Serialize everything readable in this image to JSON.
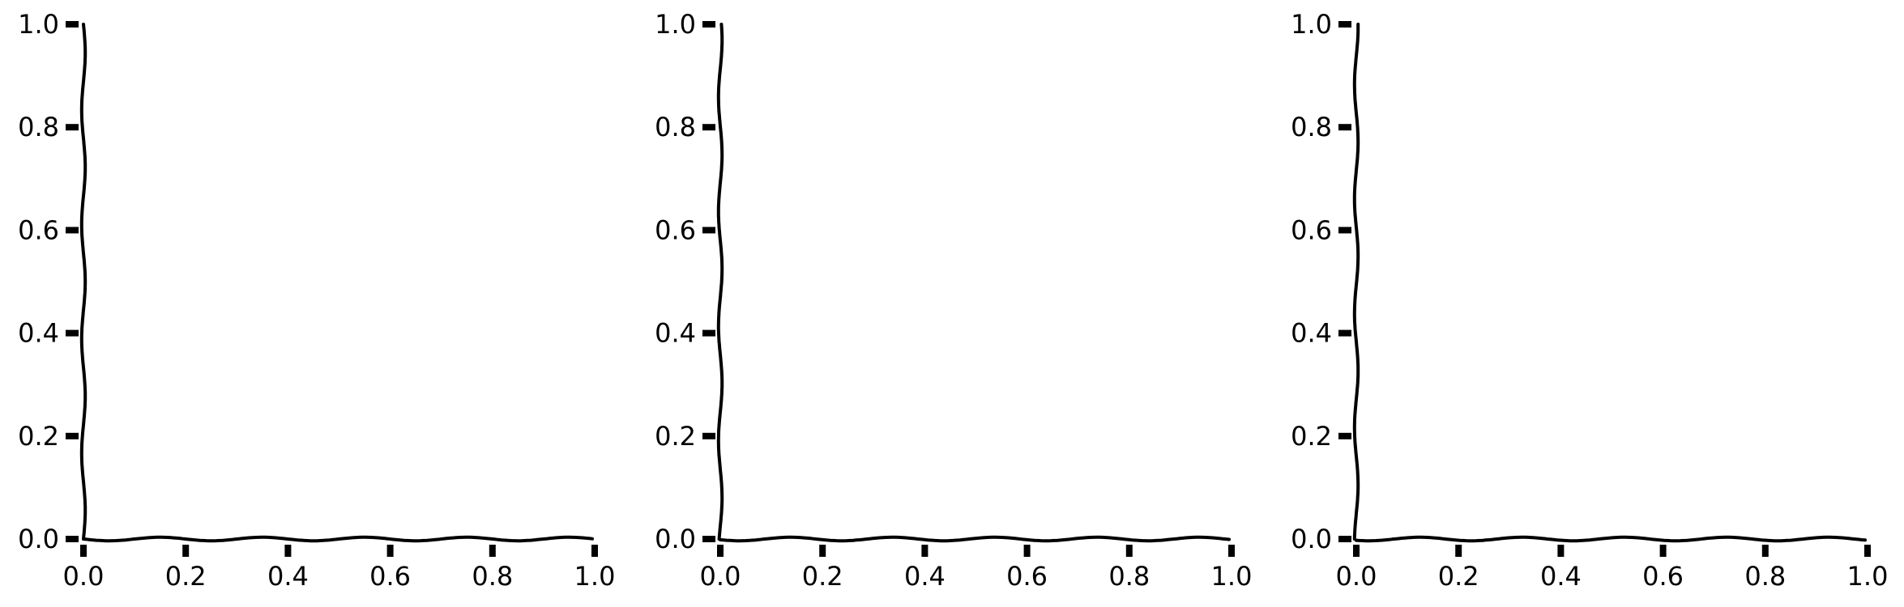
{
  "chart_data": [
    {
      "type": "line",
      "title": "",
      "xlabel": "",
      "ylabel": "",
      "xlim": [
        0.0,
        1.0
      ],
      "ylim": [
        0.0,
        1.0
      ],
      "xticks": [
        "0.0",
        "0.2",
        "0.4",
        "0.6",
        "0.8",
        "1.0"
      ],
      "yticks": [
        "0.0",
        "0.2",
        "0.4",
        "0.6",
        "0.8",
        "1.0"
      ],
      "series": [],
      "grid": false,
      "legend": "none",
      "style": "xkcd"
    },
    {
      "type": "line",
      "title": "",
      "xlabel": "",
      "ylabel": "",
      "xlim": [
        0.0,
        1.0
      ],
      "ylim": [
        0.0,
        1.0
      ],
      "xticks": [
        "0.0",
        "0.2",
        "0.4",
        "0.6",
        "0.8",
        "1.0"
      ],
      "yticks": [
        "0.0",
        "0.2",
        "0.4",
        "0.6",
        "0.8",
        "1.0"
      ],
      "series": [],
      "grid": false,
      "legend": "none",
      "style": "xkcd"
    },
    {
      "type": "line",
      "title": "",
      "xlabel": "",
      "ylabel": "",
      "xlim": [
        0.0,
        1.0
      ],
      "ylim": [
        0.0,
        1.0
      ],
      "xticks": [
        "0.0",
        "0.2",
        "0.4",
        "0.6",
        "0.8",
        "1.0"
      ],
      "yticks": [
        "0.0",
        "0.2",
        "0.4",
        "0.6",
        "0.8",
        "1.0"
      ],
      "series": [],
      "grid": false,
      "legend": "none",
      "style": "xkcd"
    }
  ],
  "colors": {
    "axis": "#000000",
    "background": "#ffffff"
  }
}
